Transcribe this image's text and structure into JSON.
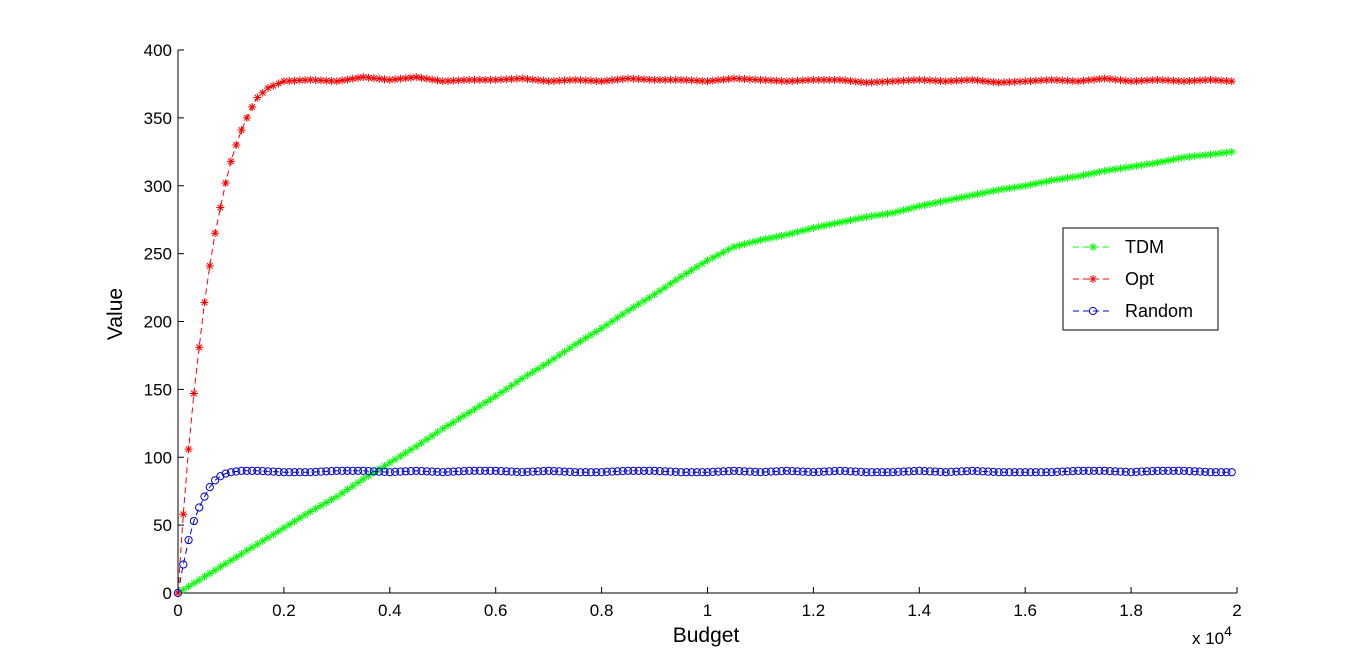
{
  "chart_data": {
    "type": "line",
    "title": "",
    "xlabel": "Budget",
    "ylabel": "Value",
    "x_multiplier_label": "x 10",
    "x_multiplier_exponent": "4",
    "xlim": [
      0,
      20000
    ],
    "ylim": [
      0,
      400
    ],
    "xticks": [
      0,
      2000,
      4000,
      6000,
      8000,
      10000,
      12000,
      14000,
      16000,
      18000,
      20000
    ],
    "xtick_labels": [
      "0",
      "0.2",
      "0.4",
      "0.6",
      "0.8",
      "1",
      "1.2",
      "1.4",
      "1.6",
      "1.8",
      "2"
    ],
    "yticks": [
      0,
      50,
      100,
      150,
      200,
      250,
      300,
      350,
      400
    ],
    "ytick_labels": [
      "0",
      "50",
      "100",
      "150",
      "200",
      "250",
      "300",
      "350",
      "400"
    ],
    "grid": false,
    "legend_position": "right",
    "series": [
      {
        "name": "TDM",
        "color": "#00ff00",
        "marker": "asterisk",
        "line_style": "dashed",
        "x": [
          0,
          500,
          1000,
          1500,
          2000,
          2500,
          3000,
          3500,
          4000,
          4500,
          5000,
          5500,
          6000,
          6500,
          7000,
          7500,
          8000,
          8500,
          9000,
          9500,
          10000,
          10500,
          11000,
          11500,
          12000,
          12500,
          13000,
          13500,
          14000,
          14500,
          15000,
          15500,
          16000,
          16500,
          17000,
          17500,
          18000,
          18500,
          19000,
          19500,
          19900
        ],
        "values": [
          0,
          12,
          24,
          36,
          48,
          60,
          71,
          84,
          96,
          108,
          121,
          133,
          145,
          158,
          170,
          183,
          195,
          208,
          220,
          233,
          245,
          255,
          260,
          264,
          269,
          273,
          277,
          280,
          285,
          289,
          293,
          297,
          300,
          304,
          307,
          311,
          314,
          317,
          321,
          323,
          325
        ]
      },
      {
        "name": "Opt",
        "color": "#ff0000",
        "marker": "asterisk",
        "line_style": "dashed",
        "x": [
          0,
          100,
          200,
          300,
          400,
          500,
          600,
          700,
          800,
          900,
          1000,
          1100,
          1200,
          1300,
          1400,
          1500,
          1700,
          2000,
          2500,
          3000,
          3500,
          4000,
          4500,
          5000,
          5500,
          6000,
          6500,
          7000,
          7500,
          8000,
          8500,
          9000,
          9500,
          10000,
          10500,
          11000,
          11500,
          12000,
          12500,
          13000,
          13500,
          14000,
          14500,
          15000,
          15500,
          16000,
          16500,
          17000,
          17500,
          18000,
          18500,
          19000,
          19500,
          19900
        ],
        "values": [
          0,
          58,
          106,
          147,
          181,
          214,
          241,
          265,
          284,
          302,
          318,
          330,
          341,
          350,
          358,
          365,
          372,
          377,
          378,
          377,
          380,
          378,
          380,
          377,
          378,
          378,
          379,
          377,
          378,
          377,
          379,
          378,
          378,
          377,
          379,
          378,
          377,
          378,
          378,
          376,
          377,
          378,
          377,
          378,
          376,
          377,
          378,
          377,
          379,
          377,
          378,
          377,
          378,
          377
        ]
      },
      {
        "name": "Random",
        "color": "#0000cc",
        "marker": "circle",
        "line_style": "dashed",
        "x": [
          0,
          100,
          200,
          300,
          400,
          500,
          600,
          700,
          800,
          900,
          1000,
          1200,
          1500,
          2000,
          2500,
          3000,
          3500,
          4000,
          4500,
          5000,
          5500,
          6000,
          6500,
          7000,
          7500,
          8000,
          8500,
          9000,
          9500,
          10000,
          10500,
          11000,
          11500,
          12000,
          12500,
          13000,
          13500,
          14000,
          14500,
          15000,
          15500,
          16000,
          16500,
          17000,
          17500,
          18000,
          18500,
          19000,
          19500,
          19900
        ],
        "values": [
          0,
          21,
          39,
          53,
          63,
          71,
          78,
          83,
          86,
          88,
          89,
          90,
          90,
          89,
          89,
          90,
          90,
          89,
          90,
          89,
          90,
          90,
          89,
          90,
          89,
          89,
          90,
          90,
          89,
          89,
          90,
          89,
          90,
          89,
          90,
          89,
          89,
          90,
          89,
          90,
          89,
          89,
          89,
          90,
          90,
          89,
          90,
          90,
          89,
          89
        ]
      }
    ]
  }
}
